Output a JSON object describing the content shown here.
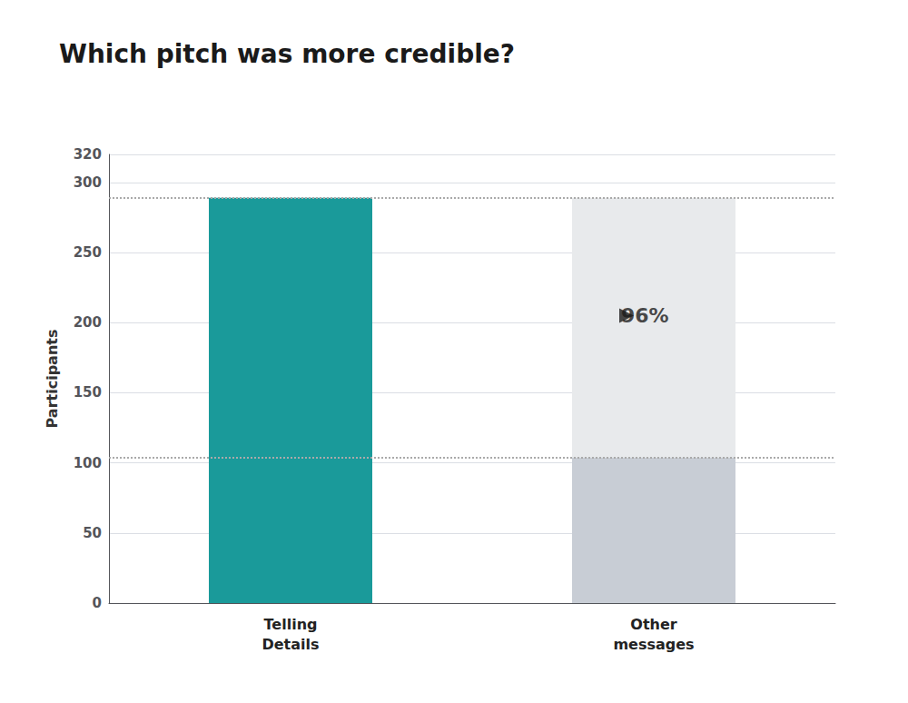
{
  "chart_data": {
    "type": "bar",
    "title": "Which pitch was more credible?",
    "categories": [
      "Telling\nDetails",
      "Other\nmessages"
    ],
    "series": [
      {
        "color": "#1a9a9a",
        "values": [
          289,
          null
        ]
      },
      {
        "color": "#c8cdd5",
        "values": [
          null,
          104
        ]
      },
      {
        "color": "#e8eaec",
        "values": [
          null,
          185
        ]
      }
    ],
    "stacked": true,
    "ylabel": "Participants",
    "ylim": [
      0,
      320
    ],
    "yticks": [
      0,
      50,
      100,
      150,
      200,
      250,
      300
    ],
    "grid": true,
    "reference_lines": [
      289,
      104
    ],
    "annotations": [
      {
        "text": "96%",
        "y": 205
      }
    ]
  }
}
